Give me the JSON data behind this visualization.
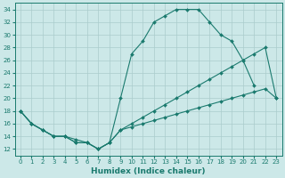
{
  "line_top_x": [
    0,
    1,
    2,
    3,
    4,
    5,
    6,
    7,
    8,
    9,
    10,
    11,
    12,
    13,
    14,
    15,
    16,
    17,
    18,
    19,
    20,
    21
  ],
  "line_top_y": [
    18,
    16,
    15,
    14,
    14,
    13,
    13,
    12,
    13,
    20,
    27,
    29,
    32,
    33,
    34,
    34,
    34,
    32,
    30,
    29,
    26,
    22
  ],
  "line_mid_x": [
    0,
    1,
    2,
    3,
    4,
    5,
    6,
    7,
    8,
    9,
    10,
    11,
    12,
    13,
    14,
    15,
    16,
    17,
    18,
    19,
    20,
    21,
    22,
    23
  ],
  "line_mid_y": [
    18,
    16,
    15,
    14,
    14,
    13,
    13,
    12,
    13,
    15,
    16,
    17,
    18,
    19,
    20,
    21,
    22,
    23,
    24,
    25,
    26,
    27,
    28,
    20
  ],
  "line_bot_x": [
    0,
    1,
    2,
    3,
    4,
    5,
    6,
    7,
    8,
    9,
    10,
    11,
    12,
    13,
    14,
    15,
    16,
    17,
    18,
    19,
    20,
    21,
    22,
    23
  ],
  "line_bot_y": [
    18,
    16,
    15,
    14,
    14,
    13.5,
    13,
    12,
    13,
    15,
    15.5,
    16,
    16.5,
    17,
    17.5,
    18,
    18.5,
    19,
    19.5,
    20,
    20.5,
    21,
    21.5,
    20
  ],
  "color": "#1a7a6e",
  "bg_color": "#cce8e8",
  "grid_color": "#aacccc",
  "xlabel": "Humidex (Indice chaleur)",
  "xlim": [
    -0.5,
    23.5
  ],
  "ylim": [
    11,
    35
  ],
  "xticks": [
    0,
    1,
    2,
    3,
    4,
    5,
    6,
    7,
    8,
    9,
    10,
    11,
    12,
    13,
    14,
    15,
    16,
    17,
    18,
    19,
    20,
    21,
    22,
    23
  ],
  "yticks": [
    12,
    14,
    16,
    18,
    20,
    22,
    24,
    26,
    28,
    30,
    32,
    34
  ],
  "markersize": 2.0,
  "linewidth": 0.8,
  "tick_fontsize": 5.0,
  "label_fontsize": 6.5
}
